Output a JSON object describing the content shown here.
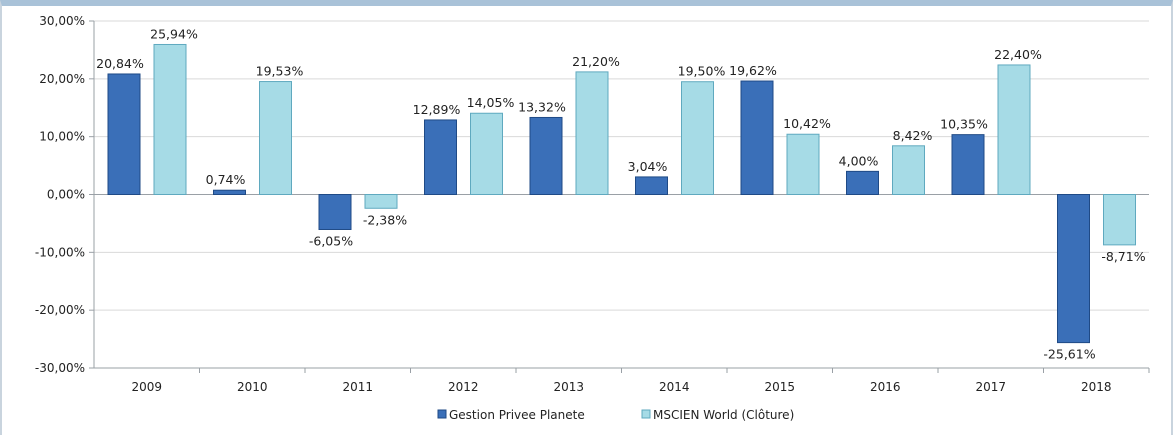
{
  "chart_data": {
    "type": "bar",
    "categories": [
      "2009",
      "2010",
      "2011",
      "2012",
      "2013",
      "2014",
      "2015",
      "2016",
      "2017",
      "2018"
    ],
    "series": [
      {
        "name": "Gestion Privee Planete",
        "values": [
          20.84,
          0.74,
          -6.05,
          12.89,
          13.32,
          3.04,
          19.62,
          4.0,
          10.35,
          -25.61
        ],
        "labels": [
          "20,84%",
          "0,74%",
          "-6,05%",
          "12,89%",
          "13,32%",
          "3,04%",
          "19,62%",
          "4,00%",
          "10,35%",
          "-25,61%"
        ],
        "color": "#3a6fb8",
        "edge": "#1f4a86"
      },
      {
        "name": "MSCIEN World (Clôture)",
        "values": [
          25.94,
          19.53,
          -2.38,
          14.05,
          21.2,
          19.5,
          10.42,
          8.42,
          22.4,
          -8.71
        ],
        "labels": [
          "25,94%",
          "19,53%",
          "-2,38%",
          "14,05%",
          "21,20%",
          "19,50%",
          "10,42%",
          "8,42%",
          "22,40%",
          "-8,71%"
        ],
        "color": "#a6dbe6",
        "edge": "#5fa9bf"
      }
    ],
    "ylim": [
      -30,
      30
    ],
    "yticks": [
      30,
      20,
      10,
      0,
      -10,
      -20,
      -30
    ],
    "ytick_labels": [
      "30,00%",
      "20,00%",
      "10,00%",
      "0,00%",
      "-10,00%",
      "-20,00%",
      "-30,00%"
    ],
    "grid": true,
    "legend": "bottom",
    "title": "",
    "xlabel": "",
    "ylabel": ""
  }
}
